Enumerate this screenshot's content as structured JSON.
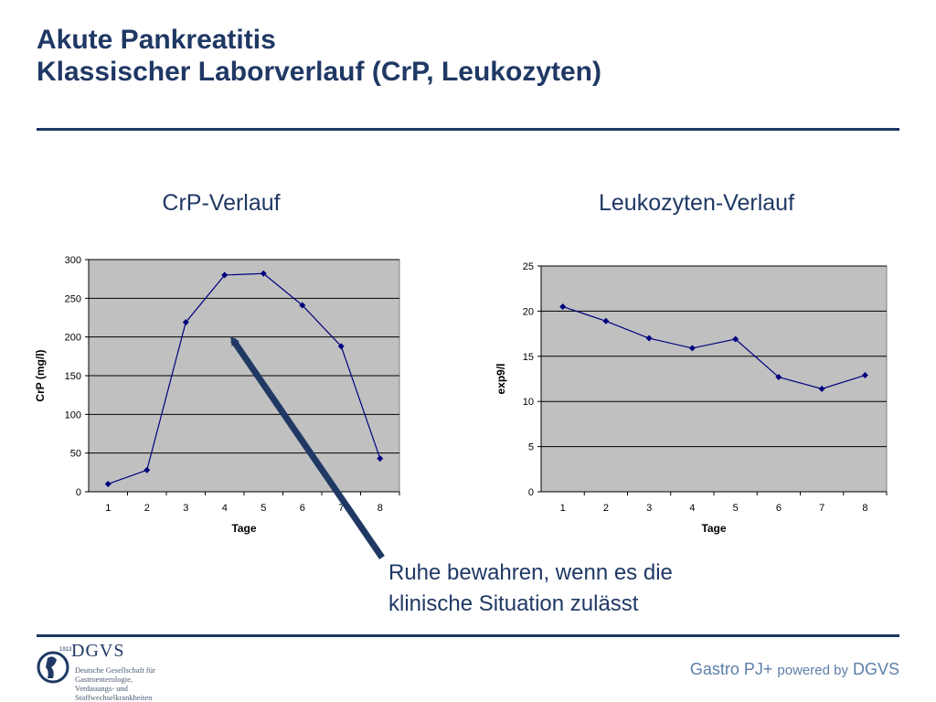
{
  "title": {
    "line1": "Akute Pankreatitis",
    "line2": "Klassischer Laborverlauf (CrP, Leukozyten)"
  },
  "chart_data": [
    {
      "type": "line",
      "title": "CrP-Verlauf",
      "xlabel": "Tage",
      "ylabel": "CrP (mg/l)",
      "categories": [
        "1",
        "2",
        "3",
        "4",
        "5",
        "6",
        "7",
        "8"
      ],
      "values": [
        10,
        28,
        219,
        280,
        282,
        241,
        188,
        43
      ],
      "ylim": [
        0,
        300
      ],
      "yticks": [
        0,
        50,
        100,
        150,
        200,
        250,
        300
      ],
      "grid": true,
      "colors": {
        "line": "#00007f",
        "plot_bg": "#c0c0c0"
      }
    },
    {
      "type": "line",
      "title": "Leukozyten-Verlauf",
      "xlabel": "Tage",
      "ylabel": "exp9/l",
      "categories": [
        "1",
        "2",
        "3",
        "4",
        "5",
        "6",
        "7",
        "8"
      ],
      "values": [
        20.5,
        18.9,
        17.0,
        15.9,
        16.9,
        12.7,
        11.4,
        12.9
      ],
      "ylim": [
        0,
        25
      ],
      "yticks": [
        0,
        5,
        10,
        15,
        20,
        25
      ],
      "grid": true,
      "colors": {
        "line": "#00007f",
        "plot_bg": "#c0c0c0"
      }
    }
  ],
  "annotation": {
    "line1": "Ruhe bewahren, wenn es die",
    "line2": "klinische Situation zulässt",
    "arrow_color": "#1f3864"
  },
  "footer": {
    "brand_main": "Gastro PJ+",
    "brand_small": "powered by",
    "brand_end": "DGVS",
    "logo_name": "DGVS",
    "logo_year": "1913",
    "logo_sub": [
      "Deutsche Gesellschaft für",
      "Gastroenterologie,",
      "Verdauungs- und",
      "Stoffwechselkrankheiten"
    ]
  }
}
